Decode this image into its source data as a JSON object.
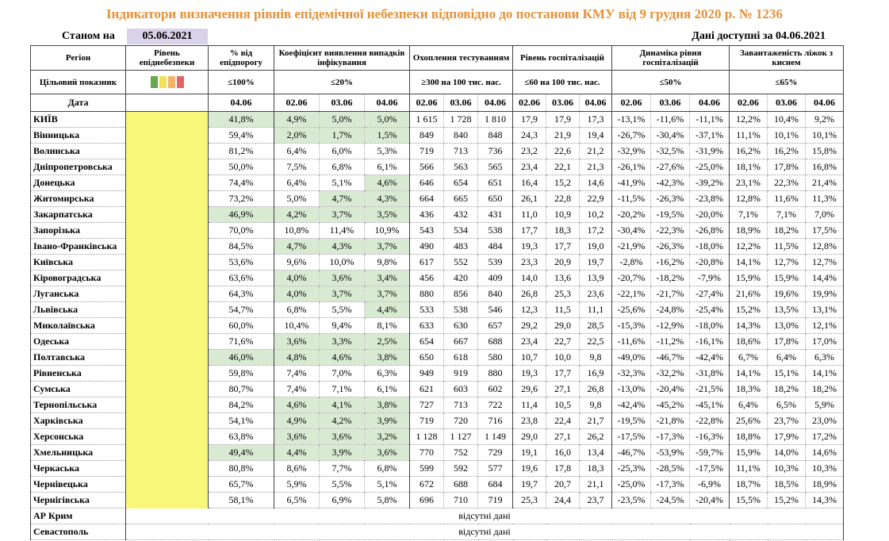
{
  "header": {
    "title": "Індикатори визначення рівнів епідемічної небезпеки відповідно до постанови КМУ від 9 грудня 2020 р. № 1236",
    "as_of_label": "Станом на",
    "as_of_date": "05.06.2021",
    "available_label": "Дані доступні за",
    "available_date": "04.06.2021",
    "title_color": "#e69138",
    "date_box_color": "#d9d2e9"
  },
  "table": {
    "columns": [
      "Регіон",
      "Рівень епіднебезпеки",
      "% від епідпорогу",
      "Коефіцієнт виявлення випадків інфікування",
      "Охоплення тестуванням",
      "Рівень госпіталізацій",
      "Динаміка рівня госпіталізацій",
      "Завантаженість ліжок з киснем"
    ],
    "target_label": "Цільовий показник",
    "targets": [
      "≤100%",
      "≤20%",
      "≥300 на 100 тис. нас.",
      "≤60 на 100 тис. нас.",
      "≤50%",
      "≤65%"
    ],
    "date_label": "Дата",
    "dates": [
      "04.06",
      "02.06",
      "03.06",
      "04.06",
      "02.06",
      "03.06",
      "04.06",
      "02.06",
      "03.06",
      "04.06",
      "02.06",
      "03.06",
      "04.06",
      "02.06",
      "03.06",
      "04.06"
    ],
    "level_color": "#f7f77a",
    "highlight_color": "#d9ead3",
    "rows": [
      {
        "region": "КИЇВ",
        "cells": [
          "41,8%",
          "4,9%",
          "5,0%",
          "5,0%",
          "1 615",
          "1 728",
          "1 810",
          "17,9",
          "17,9",
          "17,3",
          "-13,1%",
          "-11,6%",
          "-11,1%",
          "12,2%",
          "10,4%",
          "9,2%"
        ],
        "highlight": [
          0,
          1,
          2,
          3
        ]
      },
      {
        "region": "Вінницька",
        "cells": [
          "59,4%",
          "2,0%",
          "1,7%",
          "1,5%",
          "849",
          "840",
          "848",
          "24,3",
          "21,9",
          "19,4",
          "-26,7%",
          "-30,4%",
          "-37,1%",
          "11,1%",
          "10,1%",
          "10,1%"
        ],
        "highlight": [
          1,
          2,
          3
        ]
      },
      {
        "region": "Волинська",
        "cells": [
          "81,2%",
          "6,4%",
          "6,0%",
          "5,3%",
          "719",
          "713",
          "736",
          "23,2",
          "22,6",
          "21,2",
          "-32,9%",
          "-32,5%",
          "-31,9%",
          "16,2%",
          "16,2%",
          "15,8%"
        ]
      },
      {
        "region": "Дніпропетровська",
        "cells": [
          "50,0%",
          "7,5%",
          "6,8%",
          "6,1%",
          "566",
          "563",
          "565",
          "23,4",
          "22,1",
          "21,3",
          "-26,1%",
          "-27,6%",
          "-25,0%",
          "18,1%",
          "17,8%",
          "16,8%"
        ]
      },
      {
        "region": "Донецька",
        "cells": [
          "74,4%",
          "6,4%",
          "5,1%",
          "4,6%",
          "646",
          "654",
          "651",
          "16,4",
          "15,2",
          "14,6",
          "-41,9%",
          "-42,3%",
          "-39,2%",
          "23,1%",
          "22,3%",
          "21,4%"
        ],
        "highlight": [
          3
        ]
      },
      {
        "region": "Житомирська",
        "cells": [
          "73,2%",
          "5,0%",
          "4,7%",
          "4,3%",
          "664",
          "665",
          "650",
          "26,1",
          "22,8",
          "22,9",
          "-11,5%",
          "-26,3%",
          "-23,8%",
          "12,8%",
          "11,6%",
          "11,3%"
        ],
        "highlight": [
          2,
          3
        ]
      },
      {
        "region": "Закарпатська",
        "cells": [
          "46,9%",
          "4,2%",
          "3,7%",
          "3,5%",
          "436",
          "432",
          "431",
          "11,0",
          "10,9",
          "10,2",
          "-20,2%",
          "-19,5%",
          "-20,0%",
          "7,1%",
          "7,1%",
          "7,0%"
        ],
        "highlight": [
          0,
          1,
          2,
          3
        ]
      },
      {
        "region": "Запорізька",
        "cells": [
          "70,0%",
          "10,8%",
          "11,4%",
          "10,9%",
          "543",
          "534",
          "538",
          "17,7",
          "18,3",
          "17,2",
          "-30,4%",
          "-22,3%",
          "-26,8%",
          "18,9%",
          "18,2%",
          "17,5%"
        ]
      },
      {
        "region": "Івано-Франківська",
        "cells": [
          "84,5%",
          "4,7%",
          "4,3%",
          "3,7%",
          "490",
          "483",
          "484",
          "19,3",
          "17,7",
          "19,0",
          "-21,9%",
          "-26,3%",
          "-18,0%",
          "12,2%",
          "11,5%",
          "12,8%"
        ],
        "highlight": [
          1,
          2,
          3
        ]
      },
      {
        "region": "Київська",
        "cells": [
          "53,6%",
          "9,6%",
          "10,0%",
          "9,8%",
          "617",
          "552",
          "539",
          "23,3",
          "20,9",
          "19,7",
          "-2,8%",
          "-16,2%",
          "-20,8%",
          "14,1%",
          "12,7%",
          "12,7%"
        ]
      },
      {
        "region": "Кіровоградська",
        "cells": [
          "63,6%",
          "4,0%",
          "3,6%",
          "3,4%",
          "456",
          "420",
          "409",
          "14,0",
          "13,6",
          "13,9",
          "-20,7%",
          "-18,2%",
          "-7,9%",
          "15,9%",
          "15,9%",
          "14,4%"
        ],
        "highlight": [
          1,
          2,
          3
        ]
      },
      {
        "region": "Луганська",
        "cells": [
          "64,3%",
          "4,0%",
          "3,7%",
          "3,7%",
          "880",
          "856",
          "840",
          "26,8",
          "25,3",
          "23,6",
          "-22,1%",
          "-21,7%",
          "-27,4%",
          "21,6%",
          "19,6%",
          "19,9%"
        ],
        "highlight": [
          1,
          2,
          3
        ]
      },
      {
        "region": "Львівська",
        "cells": [
          "54,7%",
          "6,8%",
          "5,5%",
          "4,4%",
          "533",
          "538",
          "546",
          "12,3",
          "11,5",
          "11,1",
          "-25,6%",
          "-24,8%",
          "-25,4%",
          "15,2%",
          "13,5%",
          "13,1%"
        ],
        "highlight": [
          3
        ]
      },
      {
        "region": "Миколаївська",
        "cells": [
          "60,0%",
          "10,4%",
          "9,4%",
          "8,1%",
          "633",
          "630",
          "657",
          "29,2",
          "29,0",
          "28,5",
          "-15,3%",
          "-12,9%",
          "-18,0%",
          "14,3%",
          "13,0%",
          "12,1%"
        ]
      },
      {
        "region": "Одеська",
        "cells": [
          "71,6%",
          "3,6%",
          "3,3%",
          "2,5%",
          "654",
          "667",
          "688",
          "23,4",
          "22,7",
          "22,5",
          "-11,6%",
          "-11,2%",
          "-16,1%",
          "18,6%",
          "17,8%",
          "17,0%"
        ],
        "highlight": [
          1,
          2,
          3
        ]
      },
      {
        "region": "Полтавська",
        "cells": [
          "46,0%",
          "4,8%",
          "4,6%",
          "3,8%",
          "650",
          "618",
          "580",
          "10,7",
          "10,0",
          "9,8",
          "-49,0%",
          "-46,7%",
          "-42,4%",
          "6,7%",
          "6,4%",
          "6,3%"
        ],
        "highlight": [
          0,
          1,
          2,
          3
        ]
      },
      {
        "region": "Рівненська",
        "cells": [
          "59,8%",
          "7,4%",
          "7,0%",
          "6,3%",
          "949",
          "919",
          "880",
          "19,3",
          "17,7",
          "16,9",
          "-32,3%",
          "-32,2%",
          "-31,8%",
          "14,1%",
          "15,1%",
          "14,1%"
        ]
      },
      {
        "region": "Сумська",
        "cells": [
          "80,7%",
          "7,4%",
          "7,1%",
          "6,1%",
          "621",
          "603",
          "602",
          "29,6",
          "27,1",
          "26,8",
          "-13,0%",
          "-20,4%",
          "-21,5%",
          "18,3%",
          "18,2%",
          "18,2%"
        ]
      },
      {
        "region": "Тернопільська",
        "cells": [
          "84,2%",
          "4,6%",
          "4,1%",
          "3,8%",
          "727",
          "713",
          "722",
          "11,4",
          "10,5",
          "9,8",
          "-42,4%",
          "-45,2%",
          "-45,1%",
          "6,4%",
          "6,5%",
          "5,9%"
        ],
        "highlight": [
          1,
          2,
          3
        ]
      },
      {
        "region": "Харківська",
        "cells": [
          "54,1%",
          "4,9%",
          "4,2%",
          "3,9%",
          "719",
          "720",
          "716",
          "23,8",
          "22,4",
          "21,7",
          "-19,5%",
          "-21,8%",
          "-22,8%",
          "25,6%",
          "23,7%",
          "23,0%"
        ],
        "highlight": [
          1,
          2,
          3
        ]
      },
      {
        "region": "Херсонська",
        "cells": [
          "63,8%",
          "3,6%",
          "3,6%",
          "3,2%",
          "1 128",
          "1 127",
          "1 149",
          "29,0",
          "27,1",
          "26,2",
          "-17,5%",
          "-17,3%",
          "-16,3%",
          "18,8%",
          "17,9%",
          "17,2%"
        ],
        "highlight": [
          1,
          2,
          3
        ]
      },
      {
        "region": "Хмельницька",
        "cells": [
          "49,4%",
          "4,4%",
          "3,9%",
          "3,6%",
          "770",
          "752",
          "729",
          "19,1",
          "16,0",
          "13,4",
          "-46,7%",
          "-53,9%",
          "-59,7%",
          "15,9%",
          "14,0%",
          "14,6%"
        ],
        "highlight": [
          0,
          1,
          2,
          3
        ]
      },
      {
        "region": "Черкаська",
        "cells": [
          "80,8%",
          "8,6%",
          "7,7%",
          "6,8%",
          "599",
          "592",
          "577",
          "19,6",
          "17,8",
          "18,3",
          "-25,3%",
          "-28,5%",
          "-17,5%",
          "11,1%",
          "10,3%",
          "10,3%"
        ]
      },
      {
        "region": "Чернівецька",
        "cells": [
          "65,7%",
          "5,9%",
          "5,5%",
          "5,1%",
          "672",
          "688",
          "684",
          "19,7",
          "20,7",
          "21,1",
          "-25,0%",
          "-17,3%",
          "-6,9%",
          "18,7%",
          "18,5%",
          "18,9%"
        ]
      },
      {
        "region": "Чернігівська",
        "cells": [
          "58,1%",
          "6,5%",
          "6,9%",
          "5,8%",
          "696",
          "710",
          "719",
          "25,3",
          "24,4",
          "23,7",
          "-23,5%",
          "-24,5%",
          "-20,4%",
          "15,5%",
          "15,2%",
          "14,3%"
        ]
      }
    ],
    "missing_rows": [
      {
        "region": "АР Крим",
        "note": "відсутні дані"
      },
      {
        "region": "Севастополь",
        "note": "відсутні дані"
      }
    ]
  }
}
